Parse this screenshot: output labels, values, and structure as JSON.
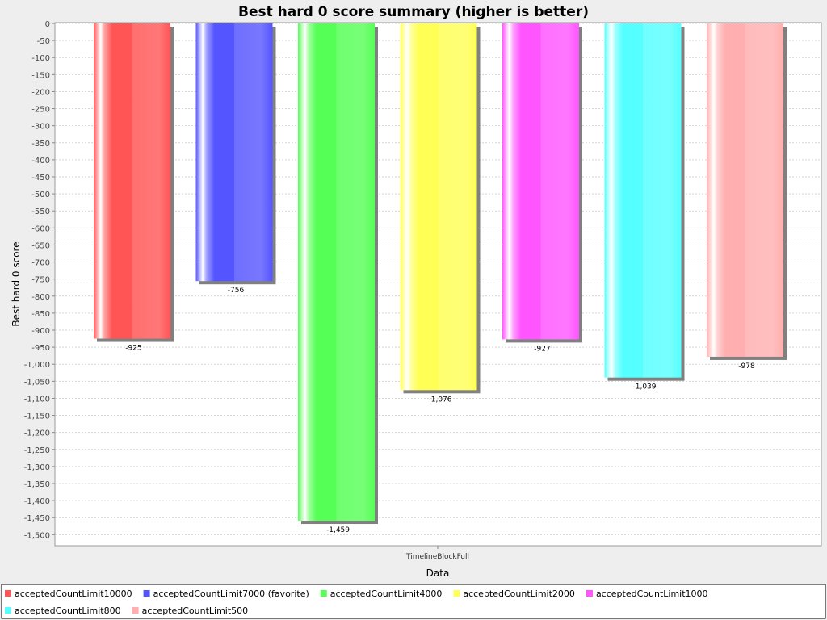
{
  "chart_data": {
    "type": "bar",
    "title": "Best hard 0 score summary (higher is better)",
    "xlabel": "Data",
    "ylabel": "Best hard 0 score",
    "categories": [
      "TimelineBlockFull"
    ],
    "ylim": [
      -1530,
      0
    ],
    "ytick_step": 50,
    "grid": true,
    "legend_position": "bottom",
    "series": [
      {
        "name": "acceptedCountLimit10000",
        "values": [
          -925
        ],
        "value_labels": [
          "-925"
        ],
        "color": "#ff5555"
      },
      {
        "name": "acceptedCountLimit7000 (favorite)",
        "values": [
          -756
        ],
        "value_labels": [
          "-756"
        ],
        "color": "#5555ff"
      },
      {
        "name": "acceptedCountLimit4000",
        "values": [
          -1459
        ],
        "value_labels": [
          "-1,459"
        ],
        "color": "#55ff55"
      },
      {
        "name": "acceptedCountLimit2000",
        "values": [
          -1076
        ],
        "value_labels": [
          "-1,076"
        ],
        "color": "#ffff55"
      },
      {
        "name": "acceptedCountLimit1000",
        "values": [
          -927
        ],
        "value_labels": [
          "-927"
        ],
        "color": "#ff55ff"
      },
      {
        "name": "acceptedCountLimit800",
        "values": [
          -1039
        ],
        "value_labels": [
          "-1,039"
        ],
        "color": "#55ffff"
      },
      {
        "name": "acceptedCountLimit500",
        "values": [
          -978
        ],
        "value_labels": [
          "-978"
        ],
        "color": "#ffafaf"
      }
    ]
  }
}
